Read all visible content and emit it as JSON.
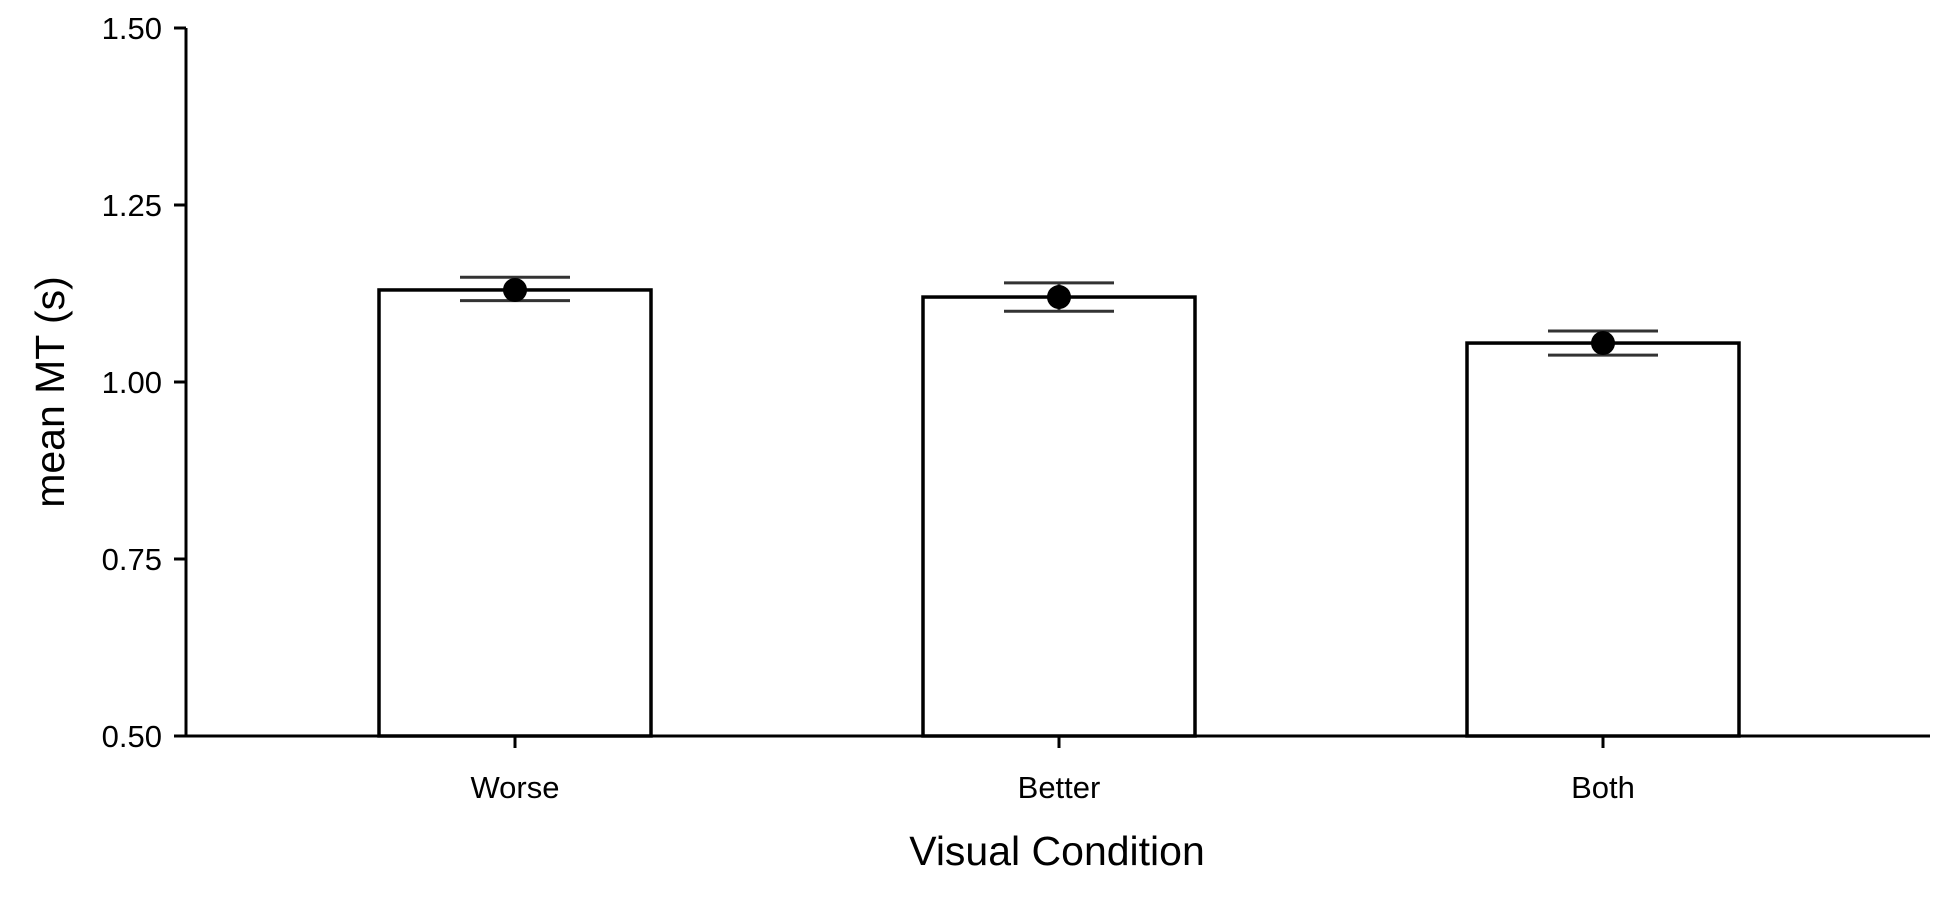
{
  "chart_data": {
    "type": "bar",
    "title": "",
    "xlabel": "Visual Condition",
    "ylabel": "mean MT (s)",
    "categories": [
      "Worse",
      "Better",
      "Both"
    ],
    "values": [
      1.13,
      1.12,
      1.055
    ],
    "error_bars": {
      "lower": [
        1.115,
        1.1,
        1.038
      ],
      "upper": [
        1.148,
        1.14,
        1.072
      ]
    },
    "ylim": [
      0.5,
      1.5
    ],
    "yticks": [
      "0.50",
      "0.75",
      "1.00",
      "1.25",
      "1.50"
    ],
    "grid": false,
    "bar_fill": "#ffffff",
    "bar_stroke": "#000000",
    "point_color": "#000000",
    "errorbar_color": "#333333"
  }
}
